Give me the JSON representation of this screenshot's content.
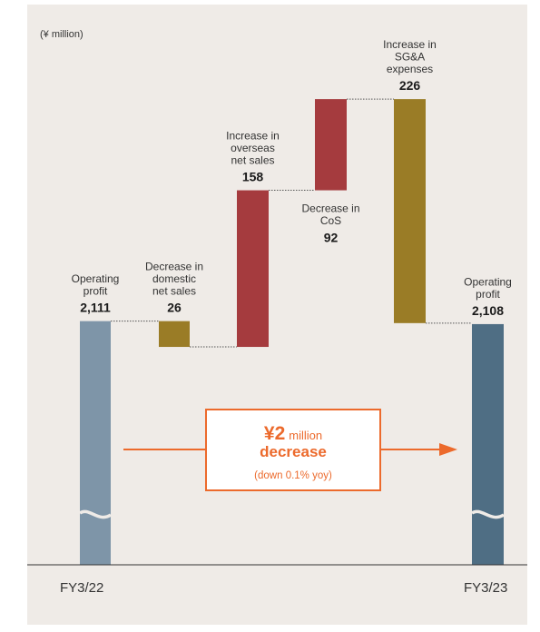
{
  "chart_data": {
    "type": "waterfall",
    "unit_label": "(¥ million)",
    "ylim": [
      1900,
      2380
    ],
    "axis_break": true,
    "steps": [
      {
        "id": "start",
        "label_lines": [
          "Operating",
          "profit"
        ],
        "value_text": "2,111",
        "kind": "total",
        "start": 0,
        "end": 2111,
        "color": "#7e95a8"
      },
      {
        "id": "domestic",
        "label_lines": [
          "Decrease in",
          "domestic",
          "net sales"
        ],
        "value_text": "26",
        "kind": "decrease",
        "start": 2111,
        "end": 2085,
        "color": "#9a7c26"
      },
      {
        "id": "overseas",
        "label_lines": [
          "Increase in",
          "overseas",
          "net sales"
        ],
        "value_text": "158",
        "kind": "increase",
        "start": 2085,
        "end": 2243,
        "color": "#a53b3e"
      },
      {
        "id": "cos",
        "label_lines": [
          "Decrease in",
          "CoS"
        ],
        "value_text": "92",
        "kind": "increase",
        "start": 2243,
        "end": 2335,
        "color": "#a53b3e"
      },
      {
        "id": "sga",
        "label_lines": [
          "Increase in",
          "SG&A",
          "expenses"
        ],
        "value_text": "226",
        "kind": "decrease",
        "start": 2335,
        "end": 2109,
        "color": "#9a7c26"
      },
      {
        "id": "end",
        "label_lines": [
          "Operating",
          "profit"
        ],
        "value_text": "2,108",
        "kind": "total",
        "start": 0,
        "end": 2108,
        "color": "#4f6e84"
      }
    ],
    "period_labels": {
      "left": "FY3/22",
      "right": "FY3/23"
    },
    "callout": {
      "amount": "¥2",
      "unit": "million",
      "headline": "decrease",
      "sub": "(down 0.1% yoy)",
      "color": "#ec6a2c"
    }
  }
}
